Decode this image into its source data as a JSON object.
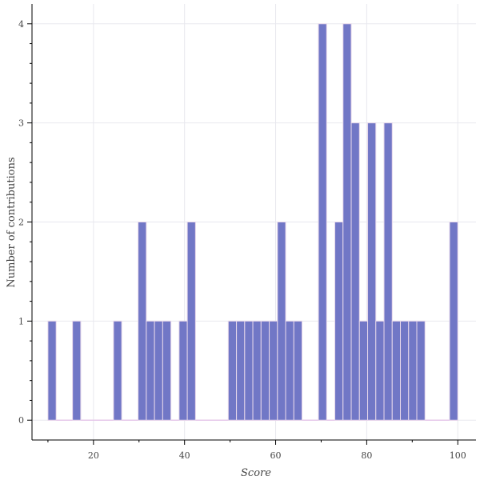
{
  "chart_data": {
    "type": "bar",
    "xlabel": "Score",
    "ylabel": "Number of contributions",
    "xlim": [
      6.5,
      104
    ],
    "ylim": [
      -0.2,
      4.2
    ],
    "xticks": [
      20,
      40,
      60,
      80,
      100
    ],
    "yticks": [
      0,
      1,
      2,
      3,
      4
    ],
    "grid": true,
    "bin_width": 1.8,
    "bar_color": "#7177c6",
    "bar_edge_color": "#e6d7ea",
    "baseline_color": "#e6c8ea",
    "grid_color": "#e8e8ee",
    "bins": [
      {
        "x": 10.9,
        "value": 1
      },
      {
        "x": 16.3,
        "value": 1
      },
      {
        "x": 25.3,
        "value": 1
      },
      {
        "x": 30.7,
        "value": 2
      },
      {
        "x": 32.5,
        "value": 1
      },
      {
        "x": 34.3,
        "value": 1
      },
      {
        "x": 36.1,
        "value": 1
      },
      {
        "x": 39.7,
        "value": 1
      },
      {
        "x": 41.5,
        "value": 2
      },
      {
        "x": 50.5,
        "value": 1
      },
      {
        "x": 52.3,
        "value": 1
      },
      {
        "x": 54.1,
        "value": 1
      },
      {
        "x": 55.9,
        "value": 1
      },
      {
        "x": 57.7,
        "value": 1
      },
      {
        "x": 59.5,
        "value": 1
      },
      {
        "x": 61.3,
        "value": 2
      },
      {
        "x": 63.1,
        "value": 1
      },
      {
        "x": 64.9,
        "value": 1
      },
      {
        "x": 70.3,
        "value": 4
      },
      {
        "x": 73.9,
        "value": 2
      },
      {
        "x": 75.7,
        "value": 4
      },
      {
        "x": 77.5,
        "value": 3
      },
      {
        "x": 79.3,
        "value": 1
      },
      {
        "x": 81.1,
        "value": 3
      },
      {
        "x": 82.9,
        "value": 1
      },
      {
        "x": 84.7,
        "value": 3
      },
      {
        "x": 86.5,
        "value": 1
      },
      {
        "x": 88.3,
        "value": 1
      },
      {
        "x": 90.1,
        "value": 1
      },
      {
        "x": 91.9,
        "value": 1
      },
      {
        "x": 99.1,
        "value": 2
      }
    ]
  }
}
